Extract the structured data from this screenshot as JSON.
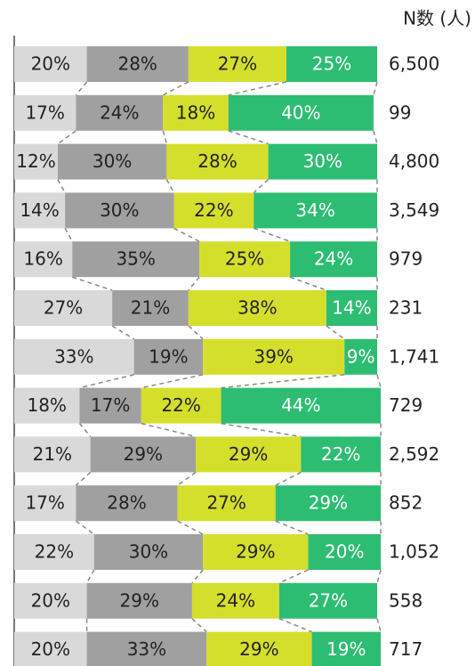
{
  "chart_data": {
    "type": "stacked-bar-100",
    "orientation": "horizontal",
    "xlim": [
      0,
      100
    ],
    "series": [
      {
        "color": "#d9d9d9",
        "label_color": "#222222",
        "values": [
          20,
          17,
          12,
          14,
          16,
          27,
          33,
          18,
          21,
          17,
          22,
          20,
          20
        ],
        "value_labels": [
          "20%",
          "17%",
          "12%",
          "14%",
          "16%",
          "27%",
          "33%",
          "18%",
          "21%",
          "17%",
          "22%",
          "20%",
          "20%"
        ]
      },
      {
        "color": "#a0a0a0",
        "label_color": "#222222",
        "values": [
          28,
          24,
          30,
          30,
          35,
          21,
          19,
          17,
          29,
          28,
          30,
          29,
          33
        ],
        "value_labels": [
          "28%",
          "24%",
          "30%",
          "30%",
          "35%",
          "21%",
          "19%",
          "17%",
          "29%",
          "28%",
          "30%",
          "29%",
          "33%"
        ]
      },
      {
        "color": "#d4df2c",
        "label_color": "#222222",
        "values": [
          27,
          18,
          28,
          22,
          25,
          38,
          39,
          22,
          29,
          27,
          29,
          24,
          29
        ],
        "value_labels": [
          "27%",
          "18%",
          "28%",
          "22%",
          "25%",
          "38%",
          "39%",
          "22%",
          "29%",
          "27%",
          "29%",
          "24%",
          "29%"
        ]
      },
      {
        "color": "#2dbd72",
        "label_color": "#ffffff",
        "values": [
          25,
          40,
          30,
          34,
          24,
          14,
          9,
          44,
          22,
          29,
          20,
          27,
          19
        ],
        "value_labels": [
          "25%",
          "40%",
          "30%",
          "34%",
          "24%",
          "14%",
          "9%",
          "44%",
          "22%",
          "29%",
          "20%",
          "27%",
          "19%"
        ]
      }
    ],
    "n_column": {
      "title": "N数 (人)",
      "values": [
        6500,
        99,
        4800,
        3549,
        979,
        231,
        1741,
        729,
        2592,
        852,
        1052,
        558,
        717
      ],
      "value_labels": [
        "6,500",
        "99",
        "4,800",
        "3,549",
        "979",
        "231",
        "1,741",
        "729",
        "2,592",
        "852",
        "1,052",
        "558",
        "717"
      ]
    }
  }
}
